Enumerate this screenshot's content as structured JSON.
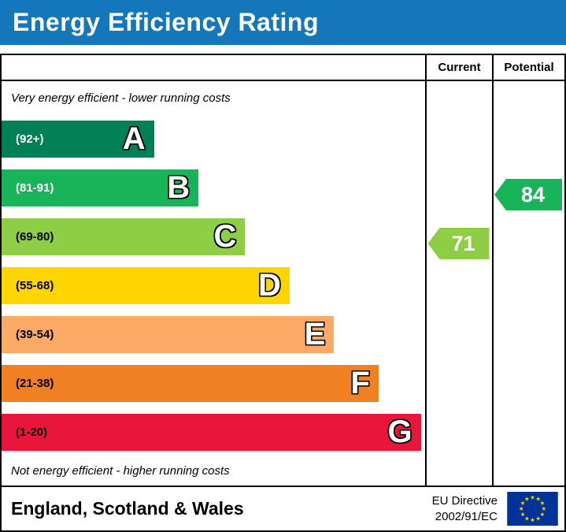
{
  "chart_data": {
    "type": "bar",
    "orientation": "horizontal",
    "title": "Energy Efficiency Rating",
    "top_note": "Very energy efficient - lower running costs",
    "bottom_note": "Not energy efficient - higher running costs",
    "columns": {
      "current": "Current",
      "potential": "Potential"
    },
    "bands": [
      {
        "letter": "A",
        "range": "(92+)",
        "color": "#008054",
        "width_pct": 36,
        "range_text_color": "#ffffff"
      },
      {
        "letter": "B",
        "range": "(81-91)",
        "color": "#19b459",
        "width_pct": 46.5,
        "range_text_color": "#ffffff"
      },
      {
        "letter": "C",
        "range": "(69-80)",
        "color": "#8dce46",
        "width_pct": 57.5,
        "range_text_color": "#000000"
      },
      {
        "letter": "D",
        "range": "(55-68)",
        "color": "#ffd500",
        "width_pct": 68,
        "range_text_color": "#000000"
      },
      {
        "letter": "E",
        "range": "(39-54)",
        "color": "#fcaa65",
        "width_pct": 78.5,
        "range_text_color": "#000000"
      },
      {
        "letter": "F",
        "range": "(21-38)",
        "color": "#ef8023",
        "width_pct": 89,
        "range_text_color": "#000000"
      },
      {
        "letter": "G",
        "range": "(1-20)",
        "color": "#e9153b",
        "width_pct": 99,
        "range_text_color": "#000000"
      }
    ],
    "current": {
      "value": 71,
      "band": "C",
      "color": "#8dce46"
    },
    "potential": {
      "value": 84,
      "band": "B",
      "color": "#19b459"
    }
  },
  "banner": {
    "bg_color": "#1577bb"
  },
  "footer": {
    "region": "England, Scotland & Wales",
    "directive_line1": "EU Directive",
    "directive_line2": "2002/91/EC",
    "flag_colors": {
      "field": "#003399",
      "stars": "#ffcc00"
    }
  }
}
